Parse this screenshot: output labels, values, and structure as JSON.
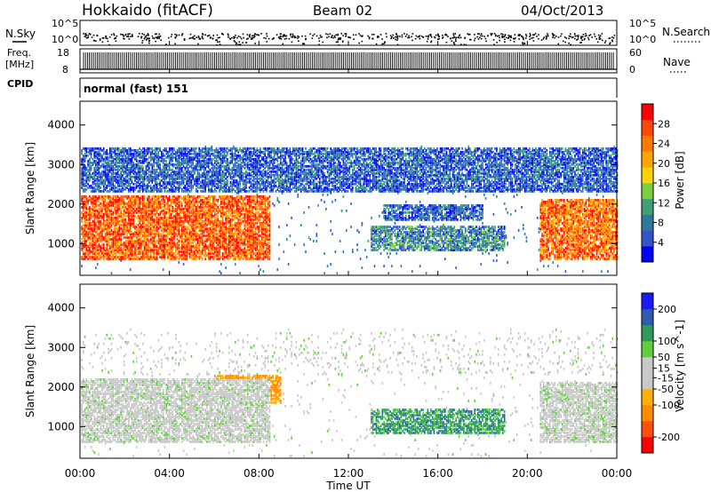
{
  "header": {
    "station": "Hokkaido (fitACF)",
    "beam": "Beam 02",
    "date": "04/Oct/2013"
  },
  "noise_panel": {
    "left_label": "N.Sky",
    "right_label": "N.Search",
    "ticks_left": [
      "10^5",
      "10^0"
    ],
    "ticks_right": [
      "10^5",
      "10^0"
    ]
  },
  "freq_panel": {
    "left_label_1": "Freq.",
    "left_label_2": "[MHz]",
    "ticks_left": [
      "18",
      "8"
    ],
    "right_label": "Nave",
    "ticks_right": [
      "60",
      "0"
    ]
  },
  "cpid_panel": {
    "label": "CPID",
    "value": "normal (fast) 151"
  },
  "x_axis": {
    "label": "Time UT",
    "ticks": [
      "00:00",
      "04:00",
      "08:00",
      "12:00",
      "16:00",
      "20:00",
      "00:00"
    ]
  },
  "colors": {
    "power_scale": [
      "#0000ff",
      "#3355cc",
      "#2f7a9a",
      "#3f9f78",
      "#7ccf3c",
      "#ffd200",
      "#ffa500",
      "#ff7800",
      "#ff4800",
      "#ff0000"
    ],
    "velocity_scale": [
      "#ff0000",
      "#ff4f00",
      "#ff8c00",
      "#ffb000",
      "#c8c8c8",
      "#c8c8c8",
      "#5fcf3c",
      "#2f9a5a",
      "#2f5bb0",
      "#1a1aff"
    ]
  },
  "chart_data": [
    {
      "type": "heatmap",
      "panel": "power",
      "ylabel": "Slant Range [km]",
      "y_ticks": [
        "1000",
        "2000",
        "3000",
        "4000"
      ],
      "ylim": [
        200,
        4600
      ],
      "xlim_hours": [
        0,
        24
      ],
      "colorbar_label": "Power [dB]",
      "colorbar_ticks": [
        "4",
        "8",
        "12",
        "16",
        "20",
        "24",
        "28"
      ],
      "colorbar_range": [
        0,
        32
      ],
      "features": [
        {
          "x": [
            0,
            8.5
          ],
          "y": [
            600,
            2200
          ],
          "value_dB": 26,
          "label": ""
        },
        {
          "x": [
            20.5,
            24
          ],
          "y": [
            600,
            2100
          ],
          "value_dB": 25,
          "label": ""
        },
        {
          "x": [
            13,
            19
          ],
          "y": [
            800,
            1450
          ],
          "value_dB": 9,
          "label": ""
        },
        {
          "x": [
            13.5,
            18
          ],
          "y": [
            1600,
            2000
          ],
          "value_dB": 6,
          "label": ""
        },
        {
          "x": [
            0,
            24
          ],
          "y": [
            2300,
            3400
          ],
          "value_dB": 6,
          "label": ""
        }
      ]
    },
    {
      "type": "heatmap",
      "panel": "velocity",
      "ylabel": "Slant Range [km]",
      "y_ticks": [
        "1000",
        "2000",
        "3000",
        "4000"
      ],
      "ylim": [
        200,
        4600
      ],
      "xlim_hours": [
        0,
        24
      ],
      "colorbar_label": "Velocity [m s^-1]",
      "colorbar_ticks": [
        "200",
        "100",
        "50",
        "15",
        "-15",
        "-50",
        "-100",
        "-200"
      ],
      "colorbar_range": [
        -250,
        250
      ],
      "features": [
        {
          "x": [
            0,
            8.5
          ],
          "y": [
            600,
            2200
          ],
          "value_ms": 0,
          "label": ""
        },
        {
          "x": [
            20.5,
            24
          ],
          "y": [
            600,
            2100
          ],
          "value_ms": 0,
          "label": ""
        },
        {
          "x": [
            13,
            19
          ],
          "y": [
            800,
            1450
          ],
          "value_ms": 40,
          "label": ""
        },
        {
          "x": [
            6,
            9
          ],
          "y": [
            1600,
            2300
          ],
          "value_ms": -60,
          "label": ""
        }
      ]
    }
  ]
}
